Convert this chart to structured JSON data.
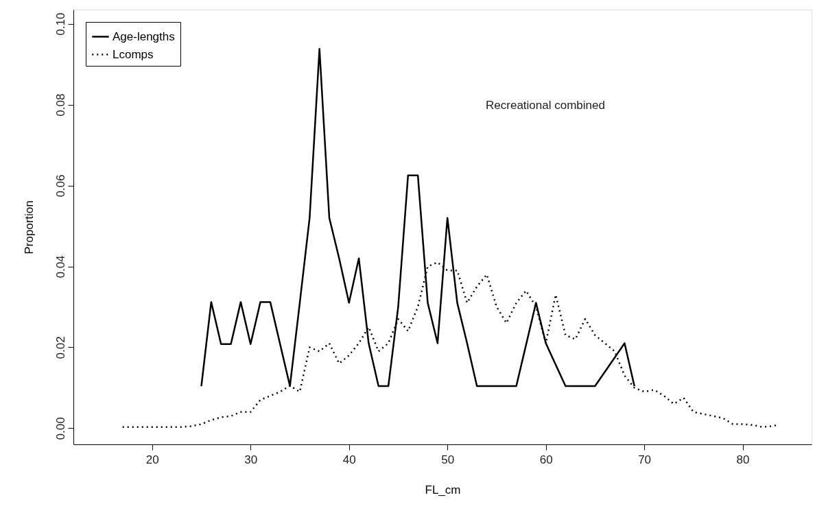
{
  "chart_data": {
    "type": "line",
    "xlabel": "FL_cm",
    "ylabel": "Proportion",
    "annotations": [
      "Recreational combined"
    ],
    "xlim": [
      12,
      87
    ],
    "ylim": [
      -0.004,
      0.1035
    ],
    "xticks": [
      20,
      30,
      40,
      50,
      60,
      70,
      80
    ],
    "yticks": [
      {
        "value": 0,
        "label": "0.00"
      },
      {
        "value": 0.02,
        "label": "0.02"
      },
      {
        "value": 0.04,
        "label": "0.04"
      },
      {
        "value": 0.06,
        "label": "0.06"
      },
      {
        "value": 0.08,
        "label": "0.08"
      },
      {
        "value": 0.1,
        "label": "0.10"
      }
    ],
    "grid": false,
    "legend": "top left",
    "marker": "none",
    "series": [
      {
        "name": "Age-lengths",
        "color": "#000000",
        "line_style": "solid",
        "x": [
          25,
          26,
          27,
          28,
          29,
          30,
          31,
          32,
          34,
          35,
          36,
          37,
          38,
          39,
          40,
          41,
          42,
          43,
          44,
          45,
          46,
          47,
          48,
          49,
          50,
          51,
          52,
          53,
          57,
          59,
          60,
          62,
          65,
          68,
          69
        ],
        "values": [
          0.0104,
          0.0312,
          0.0208,
          0.0208,
          0.0312,
          0.0208,
          0.0312,
          0.0312,
          0.0104,
          0.031,
          0.052,
          0.0938,
          0.052,
          0.042,
          0.031,
          0.042,
          0.021,
          0.0104,
          0.0104,
          0.03,
          0.0625,
          0.0625,
          0.031,
          0.021,
          0.052,
          0.031,
          0.021,
          0.0104,
          0.0104,
          0.031,
          0.021,
          0.0104,
          0.0104,
          0.021,
          0.0104
        ]
      },
      {
        "name": "Lcomps",
        "color": "#000000",
        "line_style": "dotted",
        "x": [
          17,
          18,
          19,
          20,
          21,
          22,
          23,
          24,
          25,
          26,
          27,
          28,
          29,
          30,
          31,
          32,
          33,
          34,
          35,
          36,
          37,
          38,
          39,
          40,
          41,
          42,
          43,
          44,
          45,
          46,
          47,
          48,
          49,
          50,
          51,
          52,
          53,
          54,
          55,
          56,
          57,
          58,
          59,
          60,
          61,
          62,
          63,
          64,
          65,
          66,
          67,
          68,
          69,
          70,
          71,
          72,
          73,
          74,
          75,
          76,
          77,
          78,
          79,
          80,
          81,
          82,
          83,
          83.5
        ],
        "values": [
          0.0003,
          0.0003,
          0.0003,
          0.0003,
          0.0003,
          0.0003,
          0.0003,
          0.0005,
          0.001,
          0.002,
          0.0027,
          0.003,
          0.004,
          0.004,
          0.007,
          0.008,
          0.009,
          0.0105,
          0.009,
          0.02,
          0.019,
          0.021,
          0.016,
          0.018,
          0.021,
          0.025,
          0.019,
          0.021,
          0.027,
          0.024,
          0.03,
          0.04,
          0.041,
          0.039,
          0.039,
          0.031,
          0.035,
          0.038,
          0.03,
          0.026,
          0.031,
          0.034,
          0.03,
          0.021,
          0.033,
          0.023,
          0.022,
          0.027,
          0.023,
          0.021,
          0.019,
          0.013,
          0.01,
          0.009,
          0.0095,
          0.008,
          0.006,
          0.0075,
          0.004,
          0.0035,
          0.003,
          0.0025,
          0.001,
          0.001,
          0.0008,
          0.0003,
          0.0005,
          0.0008
        ]
      }
    ]
  }
}
